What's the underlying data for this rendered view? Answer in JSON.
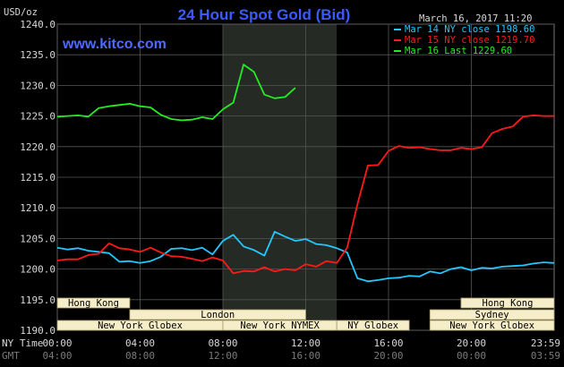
{
  "chart_data": {
    "type": "line",
    "title": "24 Hour Spot Gold (Bid)",
    "site": "www.kitco.com",
    "unit_label": "USD/oz",
    "timestamp": "March 16, 2017 11:20",
    "ylim": [
      1190.0,
      1240.0
    ],
    "y_ticks": [
      "1240.0",
      "1235.0",
      "1230.0",
      "1225.0",
      "1220.0",
      "1215.0",
      "1210.0",
      "1205.0",
      "1200.0",
      "1195.0",
      "1190.0"
    ],
    "x_row1_label": "NY Time",
    "x_row2_label": "GMT",
    "x_ticks_ny": [
      "00:00",
      "04:00",
      "08:00",
      "12:00",
      "16:00",
      "20:00",
      "23:59"
    ],
    "x_ticks_gmt": [
      "04:00",
      "08:00",
      "12:00",
      "16:00",
      "20:00",
      "00:00",
      "03:59"
    ],
    "grid": true,
    "legend_position": "top-right",
    "series": [
      {
        "name": "Mar 14 NY close 1198.60",
        "color": "#22c8ff",
        "x": [
          0,
          0.5,
          1,
          1.5,
          2,
          2.5,
          3,
          3.5,
          4,
          4.5,
          5,
          5.5,
          6,
          6.5,
          7,
          7.5,
          8,
          8.5,
          9,
          9.5,
          10,
          10.5,
          11,
          11.5,
          12,
          12.5,
          13,
          13.5,
          14,
          14.5,
          15,
          15.5,
          16,
          16.5,
          17,
          17.5,
          18,
          18.5,
          19,
          19.5,
          20,
          20.5,
          21,
          21.5,
          22,
          22.5,
          23,
          23.5,
          24
        ],
        "y": [
          1203.5,
          1203.2,
          1203.4,
          1203.0,
          1202.8,
          1202.6,
          1201.2,
          1201.3,
          1201.0,
          1201.3,
          1202.0,
          1203.3,
          1203.4,
          1203.1,
          1203.5,
          1202.4,
          1204.6,
          1205.6,
          1203.7,
          1203.1,
          1202.2,
          1206.1,
          1205.3,
          1204.6,
          1204.9,
          1204.1,
          1203.9,
          1203.4,
          1202.7,
          1198.5,
          1198.0,
          1198.2,
          1198.5,
          1198.6,
          1198.9,
          1198.8,
          1199.6,
          1199.3,
          1200.0,
          1200.3,
          1199.8,
          1200.2,
          1200.1,
          1200.4,
          1200.5,
          1200.6,
          1200.9,
          1201.1,
          1201.0
        ]
      },
      {
        "name": "Mar 15 NY close 1219.70",
        "color": "#ff1a1a",
        "x": [
          0,
          0.5,
          1,
          1.5,
          2,
          2.5,
          3,
          3.5,
          4,
          4.5,
          5,
          5.5,
          6,
          6.5,
          7,
          7.5,
          8,
          8.5,
          9,
          9.5,
          10,
          10.5,
          11,
          11.5,
          12,
          12.5,
          13,
          13.5,
          14,
          14.5,
          15,
          15.5,
          16,
          16.5,
          17,
          17.5,
          18,
          18.5,
          19,
          19.5,
          20,
          20.5,
          21,
          21.5,
          22,
          22.5,
          23,
          23.5,
          24
        ],
        "y": [
          1201.4,
          1201.6,
          1201.6,
          1202.3,
          1202.5,
          1204.2,
          1203.4,
          1203.2,
          1202.8,
          1203.5,
          1202.7,
          1202.1,
          1202.0,
          1201.7,
          1201.3,
          1201.9,
          1201.4,
          1199.3,
          1199.7,
          1199.6,
          1200.3,
          1199.6,
          1200.0,
          1199.8,
          1200.8,
          1200.4,
          1201.3,
          1201.0,
          1203.5,
          1210.6,
          1216.9,
          1217.0,
          1219.3,
          1220.1,
          1219.8,
          1219.9,
          1219.6,
          1219.4,
          1219.4,
          1219.8,
          1219.6,
          1219.9,
          1222.2,
          1222.9,
          1223.3,
          1224.9,
          1225.1,
          1225.0,
          1225.0
        ]
      },
      {
        "name": "Mar 16 Last 1229.60",
        "color": "#22ee22",
        "x": [
          0,
          0.5,
          1,
          1.5,
          2,
          2.5,
          3,
          3.5,
          4,
          4.5,
          5,
          5.5,
          6,
          6.5,
          7,
          7.5,
          8,
          8.5,
          9,
          9.5,
          10,
          10.5,
          11,
          11.5
        ],
        "y": [
          1224.9,
          1225.0,
          1225.1,
          1224.9,
          1226.3,
          1226.6,
          1226.8,
          1227.0,
          1226.6,
          1226.4,
          1225.2,
          1224.5,
          1224.3,
          1224.4,
          1224.8,
          1224.5,
          1226.1,
          1227.2,
          1233.4,
          1232.2,
          1228.5,
          1227.9,
          1228.1,
          1229.6
        ]
      }
    ],
    "sessions": [
      {
        "label": "Hong Kong",
        "x0": 0.0,
        "x1": 3.5,
        "row": 1
      },
      {
        "label": "Hong Kong",
        "x0": 19.5,
        "x1": 24.0,
        "row": 1
      },
      {
        "label": "London",
        "x0": 3.5,
        "x1": 12.0,
        "row": 2
      },
      {
        "label": "Sydney",
        "x0": 18.0,
        "x1": 24.0,
        "row": 2
      },
      {
        "label": "New York Globex",
        "x0": 0.0,
        "x1": 8.0,
        "row": 3
      },
      {
        "label": "New York NYMEX",
        "x0": 8.0,
        "x1": 13.5,
        "row": 3
      },
      {
        "label": "NY Globex",
        "x0": 13.5,
        "x1": 17.0,
        "row": 3
      },
      {
        "label": "New York Globex",
        "x0": 18.0,
        "x1": 24.0,
        "row": 3
      }
    ],
    "highlight_range": [
      8.0,
      13.5
    ]
  }
}
